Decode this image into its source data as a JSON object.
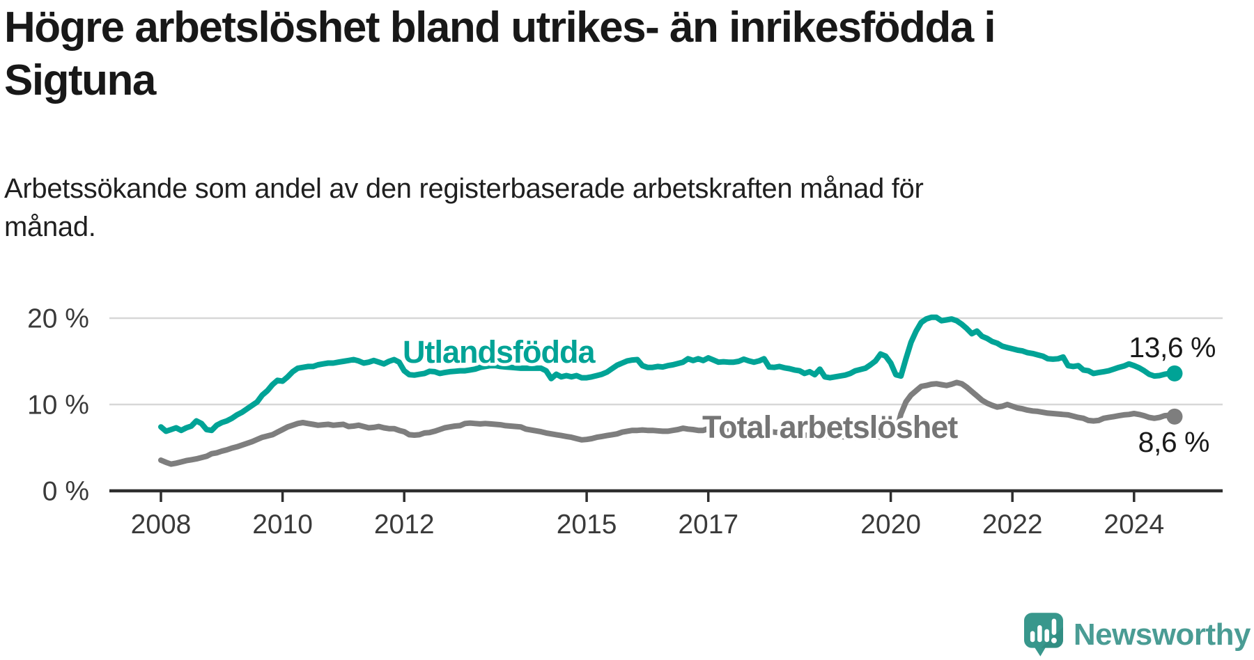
{
  "header": {
    "title_lines": [
      "Högre arbetslöshet bland utrikes- än inrikesfödda i",
      "Sigtuna"
    ],
    "subtitle_lines": [
      "Arbetssökande som andel av den registerbaserade arbetskraften månad för",
      "månad."
    ]
  },
  "chart_data": {
    "type": "line",
    "title": "Högre arbetslöshet bland utrikes- än inrikesfödda i Sigtuna",
    "subtitle": "Arbetssökande som andel av den registerbaserade arbetskraften månad för månad.",
    "unit": "%",
    "grid": "horizontal-only",
    "legend_position": "inline-labels",
    "x_axis": {
      "start_year": 2008,
      "start_month": 1,
      "frequency": "monthly",
      "ticks": [
        2008,
        2010,
        2012,
        2015,
        2017,
        2020,
        2022,
        2024
      ]
    },
    "y_axis": {
      "range": [
        0,
        22
      ],
      "ticks": [
        {
          "value": 0,
          "label": "0 %"
        },
        {
          "value": 10,
          "label": "10 %"
        },
        {
          "value": 20,
          "label": "20 %"
        }
      ]
    },
    "series": [
      {
        "name": "Utlandsfödda",
        "color": "#00a396",
        "label_color": "#00a396",
        "end_value": 13.6,
        "end_label": "13,6 %",
        "values": [
          7.4,
          6.9,
          7.1,
          7.3,
          7.0,
          7.3,
          7.5,
          8.1,
          7.8,
          7.1,
          7.0,
          7.6,
          7.9,
          8.1,
          8.4,
          8.8,
          9.1,
          9.5,
          9.9,
          10.3,
          11.1,
          11.6,
          12.3,
          12.8,
          12.7,
          13.2,
          13.8,
          14.2,
          14.3,
          14.4,
          14.4,
          14.6,
          14.7,
          14.8,
          14.8,
          14.9,
          15.0,
          15.1,
          15.2,
          15.05,
          14.8,
          14.9,
          15.1,
          14.9,
          14.7,
          15.0,
          15.2,
          14.9,
          13.9,
          13.45,
          13.4,
          13.5,
          13.6,
          13.85,
          13.8,
          13.6,
          13.7,
          13.8,
          13.85,
          13.9,
          13.9,
          14.0,
          14.1,
          14.3,
          14.4,
          14.5,
          14.5,
          14.4,
          14.35,
          14.3,
          14.25,
          14.2,
          14.2,
          14.2,
          14.2,
          14.2,
          13.9,
          13.0,
          13.5,
          13.2,
          13.35,
          13.2,
          13.35,
          13.1,
          13.1,
          13.2,
          13.35,
          13.5,
          13.75,
          14.15,
          14.55,
          14.8,
          15.05,
          15.15,
          15.2,
          14.5,
          14.3,
          14.3,
          14.4,
          14.35,
          14.5,
          14.6,
          14.75,
          14.9,
          15.3,
          15.1,
          15.3,
          15.1,
          15.4,
          15.15,
          14.9,
          14.95,
          14.9,
          14.9,
          15.0,
          15.25,
          15.05,
          14.9,
          15.05,
          15.3,
          14.35,
          14.3,
          14.4,
          14.25,
          14.15,
          14.0,
          13.9,
          13.6,
          13.8,
          13.45,
          14.1,
          13.2,
          13.1,
          13.2,
          13.3,
          13.4,
          13.6,
          13.9,
          14.05,
          14.2,
          14.6,
          15.05,
          15.85,
          15.6,
          14.8,
          13.45,
          13.3,
          15.3,
          17.2,
          18.5,
          19.5,
          19.9,
          20.1,
          20.1,
          19.7,
          19.8,
          19.9,
          19.7,
          19.3,
          18.8,
          18.2,
          18.5,
          17.9,
          17.65,
          17.3,
          17.1,
          16.75,
          16.6,
          16.45,
          16.3,
          16.2,
          16.0,
          15.9,
          15.75,
          15.6,
          15.3,
          15.25,
          15.3,
          15.5,
          14.5,
          14.4,
          14.5,
          14.0,
          13.9,
          13.6,
          13.7,
          13.8,
          13.9,
          14.1,
          14.3,
          14.45,
          14.7,
          14.5,
          14.25,
          13.9,
          13.5,
          13.3,
          13.35,
          13.5,
          13.6,
          13.6
        ]
      },
      {
        "name": "Total arbetslöshet",
        "color": "#7e7e7e",
        "label_color": "#757575",
        "end_value": 8.6,
        "end_label": "8,6 %",
        "values": [
          3.55,
          3.3,
          3.1,
          3.2,
          3.35,
          3.5,
          3.6,
          3.7,
          3.85,
          4.0,
          4.3,
          4.4,
          4.6,
          4.75,
          4.95,
          5.1,
          5.3,
          5.5,
          5.7,
          5.95,
          6.2,
          6.35,
          6.5,
          6.8,
          7.1,
          7.4,
          7.6,
          7.8,
          7.9,
          7.8,
          7.7,
          7.6,
          7.65,
          7.7,
          7.6,
          7.65,
          7.7,
          7.45,
          7.5,
          7.6,
          7.45,
          7.3,
          7.35,
          7.45,
          7.3,
          7.2,
          7.2,
          7.0,
          6.85,
          6.5,
          6.45,
          6.5,
          6.7,
          6.75,
          6.9,
          7.1,
          7.3,
          7.4,
          7.5,
          7.55,
          7.8,
          7.85,
          7.8,
          7.75,
          7.8,
          7.75,
          7.7,
          7.65,
          7.55,
          7.5,
          7.45,
          7.4,
          7.15,
          7.05,
          6.95,
          6.85,
          6.7,
          6.6,
          6.5,
          6.4,
          6.3,
          6.2,
          6.05,
          5.9,
          5.95,
          6.05,
          6.2,
          6.3,
          6.4,
          6.5,
          6.6,
          6.8,
          6.9,
          7.0,
          7.0,
          7.05,
          7.0,
          7.0,
          6.95,
          6.9,
          6.9,
          7.0,
          7.1,
          7.25,
          7.15,
          7.1,
          7.0,
          7.0,
          7.2,
          7.1,
          7.0,
          6.95,
          6.9,
          6.9,
          6.95,
          7.0,
          6.9,
          6.85,
          6.8,
          6.8,
          6.9,
          6.8,
          6.75,
          6.7,
          6.6,
          6.55,
          6.5,
          6.45,
          6.4,
          6.35,
          6.3,
          6.4,
          6.5,
          6.4,
          6.3,
          6.25,
          6.2,
          6.2,
          6.25,
          6.3,
          6.35,
          6.3,
          6.25,
          6.3,
          6.4,
          6.7,
          8.9,
          10.3,
          11.1,
          11.6,
          12.1,
          12.2,
          12.35,
          12.4,
          12.3,
          12.2,
          12.35,
          12.55,
          12.4,
          12.0,
          11.5,
          11.0,
          10.5,
          10.15,
          9.9,
          9.7,
          9.8,
          10.0,
          9.8,
          9.6,
          9.5,
          9.35,
          9.25,
          9.2,
          9.1,
          9.0,
          8.95,
          8.9,
          8.85,
          8.8,
          8.65,
          8.5,
          8.4,
          8.15,
          8.1,
          8.15,
          8.4,
          8.5,
          8.6,
          8.7,
          8.8,
          8.85,
          8.95,
          8.85,
          8.7,
          8.5,
          8.4,
          8.5,
          8.7,
          8.75,
          8.6
        ]
      }
    ]
  },
  "branding": {
    "logo_text": "Newsworthy",
    "logo_text_color": "#4a9c94",
    "logo_icon_color": "#38978c",
    "logo_icon_shadow": "#2d8278",
    "logo_icon_glyphs": "bar-chart-and-exclamation"
  }
}
